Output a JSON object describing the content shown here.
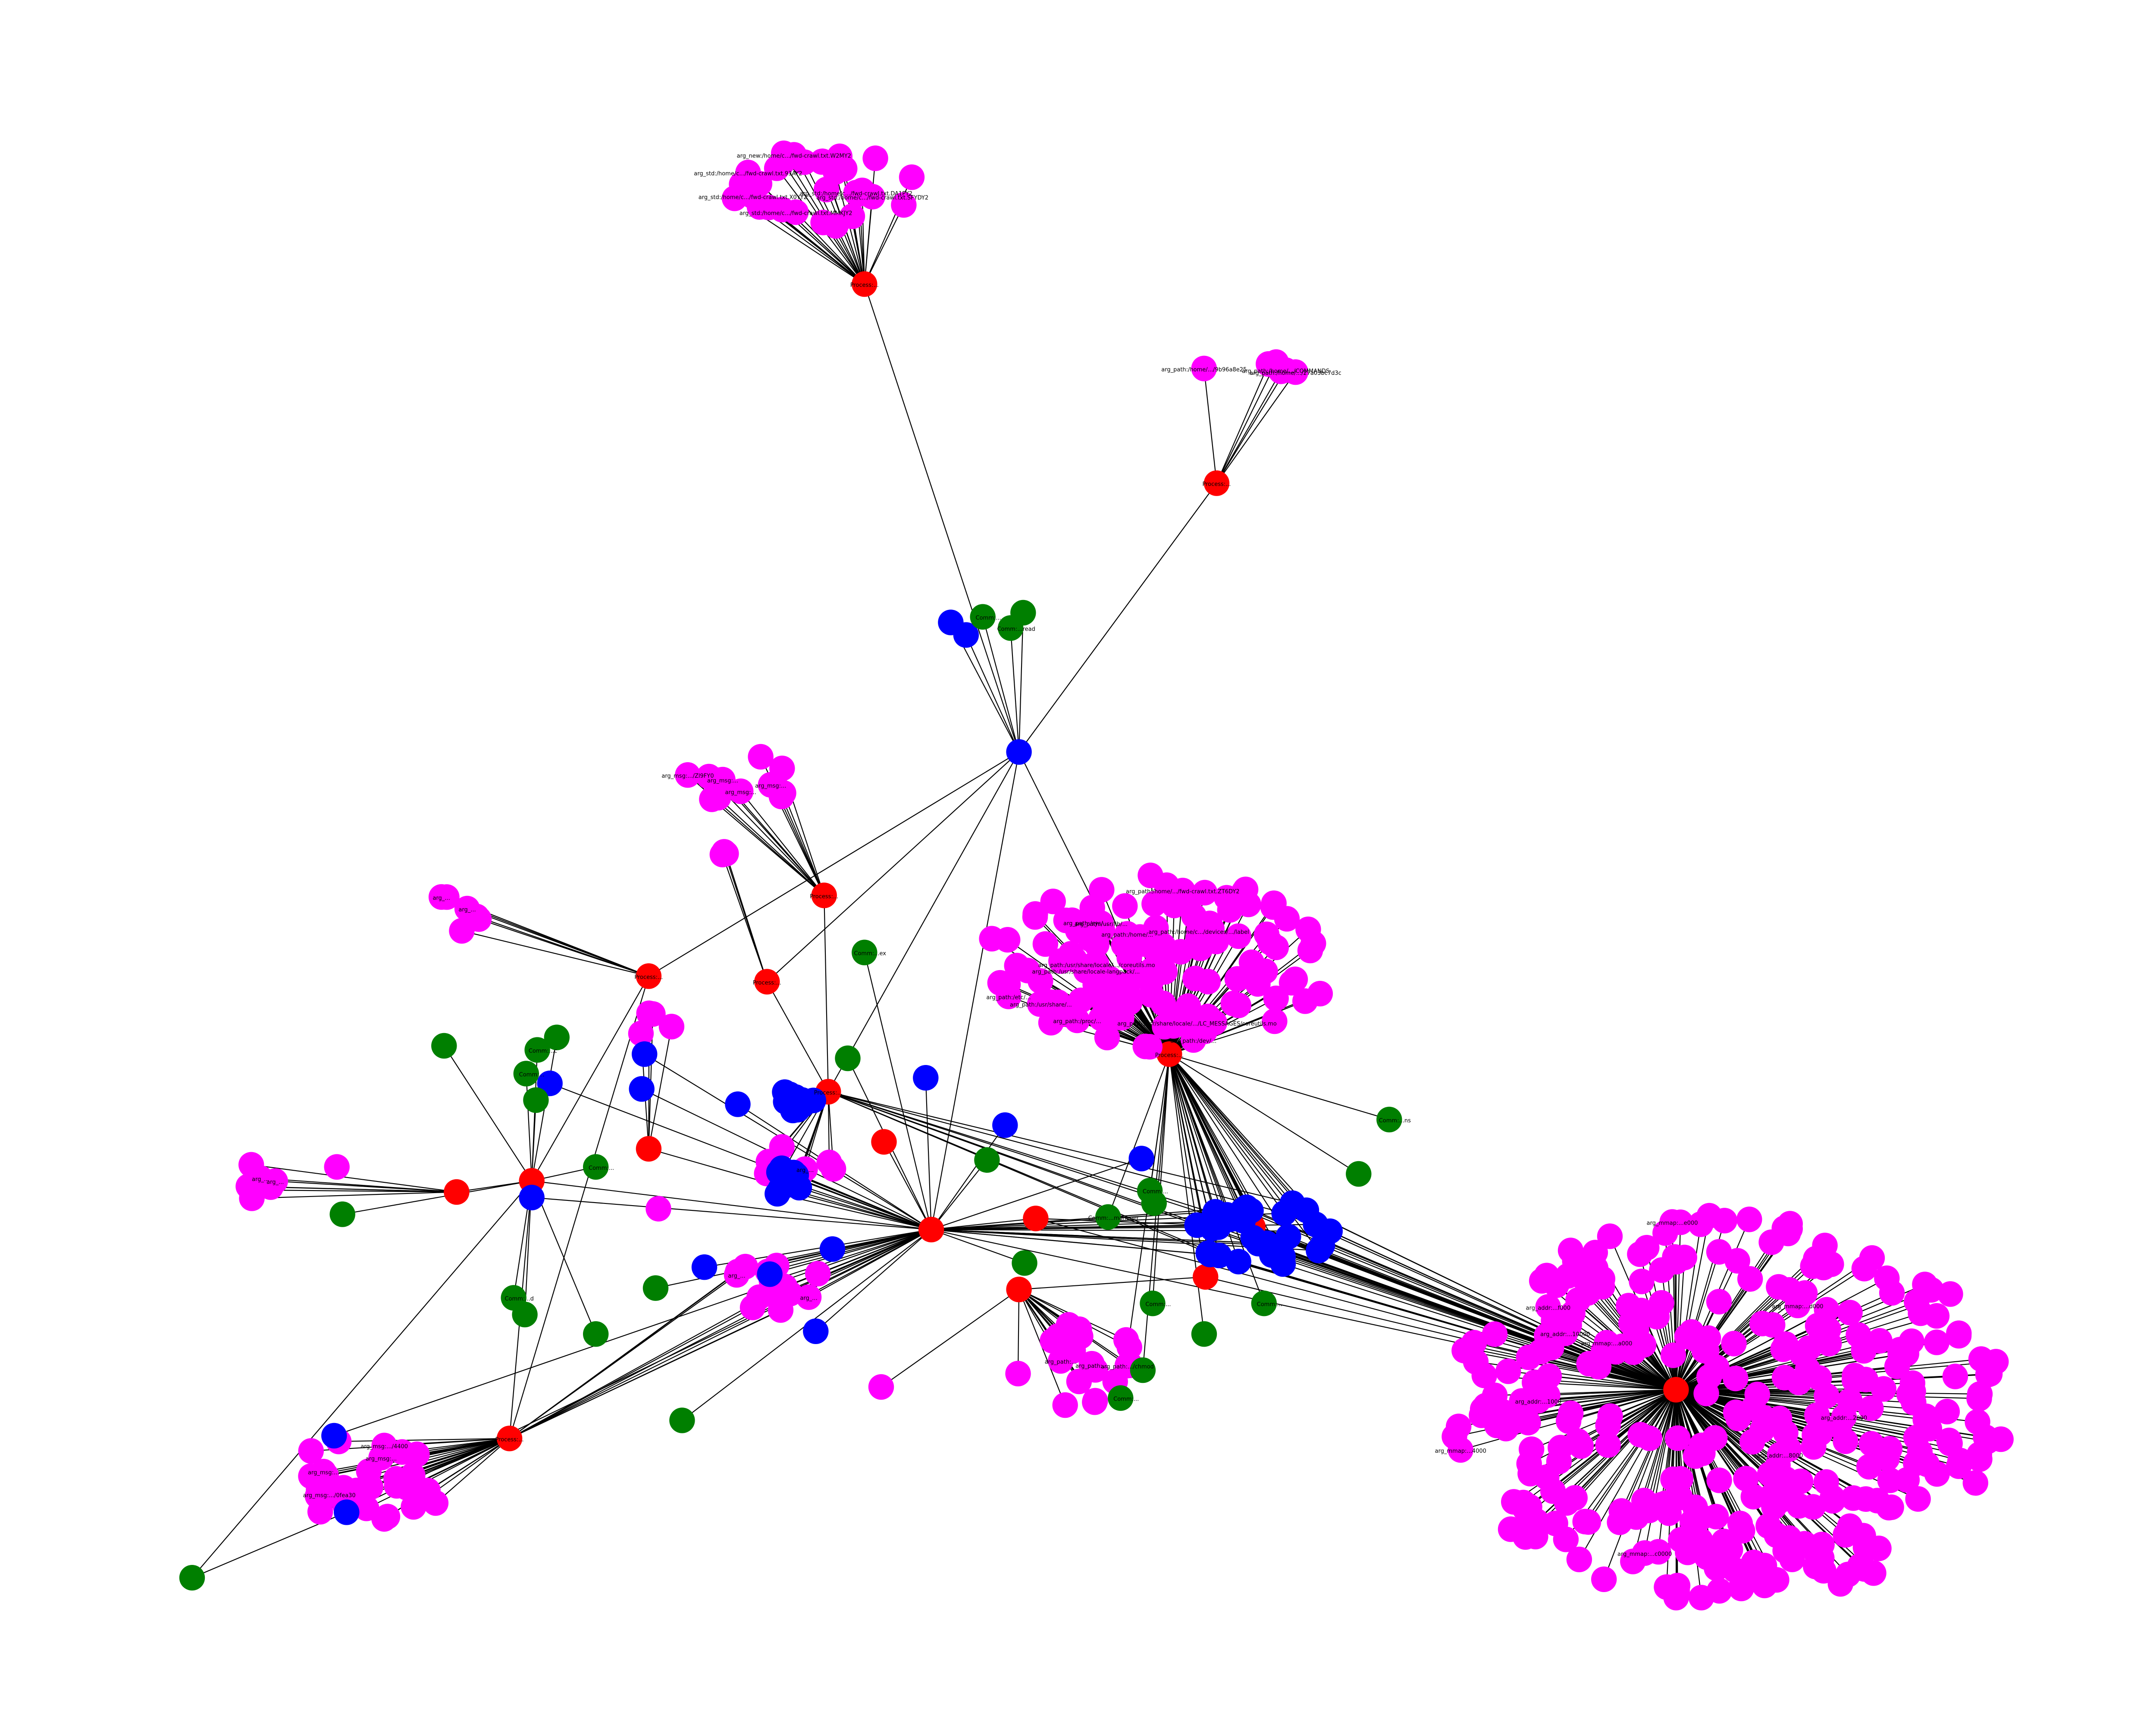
{
  "colors": {
    "edge": "#000000",
    "red": "#ff0000",
    "blue": "#0000ff",
    "green": "#007f00",
    "magenta": "#ff00ff"
  },
  "labels": {
    "c1": [
      "arg_new:/home/c.../fwd-crawl.txt.W2MY2",
      "arg_std:/home/c.../fwd-crawl.txt.93AY2",
      "arg_std:/home/c.../fwd-crawl.txt.SFYDY2",
      "arg_std:/home/c.../fwd-crawl.txt.DA1PY2",
      "arg_std:/home/c.../fwd-crawl.txt.MMKJY2",
      "arg_std:/home/c.../fwd-crawl.txt.X0YY2"
    ],
    "c2": [
      "arg_path:/home/.../9b96a8e25",
      "arg_path:/home/.../27a03bc7d3c",
      "arg_path:/home/.../COMMANDS"
    ],
    "c3": [
      "arg_path:/usr/share/locale/.../coreutils.mo",
      "arg_path:/usr/share/locale/.../LC_MESSAGES/coreutils.mo",
      "arg_path:/home/.../fwd-crawl.txt.ZT6DY2",
      "arg_path:/usr/lib/...",
      "arg_path:/home/c.../devices/.../label",
      "arg_path:/usr/share/locale-langpack/...",
      "arg_path:/etc/...",
      "arg_path:/home/...",
      "arg_path:/proc/...",
      "arg_path:/sys/...",
      "arg_path:/dev/...",
      "arg_path:/usr/share/..."
    ],
    "c4": [
      "arg_mmap:...c0000",
      "arg_addr:...2000",
      "arg_addr:...10000",
      "arg_mmap:...d000",
      "arg_addr:...8000",
      "arg_mmap:...e000",
      "arg_addr:...1000",
      "arg_mmap:...4000",
      "arg_addr:...f000",
      "arg_mmap:...a000"
    ],
    "c5": [
      "arg_msg:...",
      "arg_msg:.../Zl9FY0",
      "arg_msg:...",
      "arg_msg:..."
    ],
    "c6": [
      "arg_path:.../chmod",
      "arg_path:...",
      "arg_path:..."
    ],
    "c7": [
      "arg_msg:...",
      "arg_msg:.../0fea30",
      "arg_msg:...",
      "arg_msg:.../4400"
    ],
    "c8": [
      "arg_...",
      "arg_..."
    ],
    "c9": [
      "arg_...",
      "arg_..."
    ],
    "c10": [
      "arg_...",
      "arg_..."
    ],
    "c11": [
      "arg_..."
    ],
    "red": [
      "Process:...",
      "Process:...",
      "Process:...",
      "Process:...",
      "Process:...",
      "Process:...",
      "Process:...",
      "Process:..."
    ],
    "green": [
      "Comm:...",
      "Comm:...read",
      "Comm:...c",
      "Comm:...",
      "Comm:...ex",
      "Comm:...",
      "Comm:...manager",
      "Comm:...",
      "Comm:...",
      "Comm:...",
      "Comm:...ns",
      "Comm:...",
      "Comm:...d"
    ]
  }
}
